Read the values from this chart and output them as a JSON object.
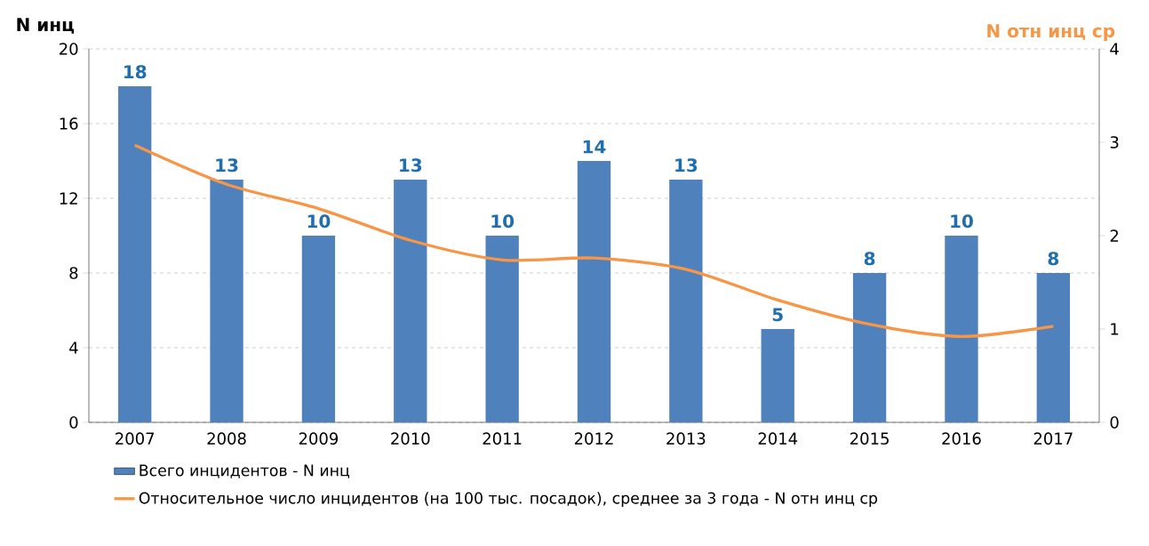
{
  "chart_data": {
    "type": "bar",
    "ylabel": "N инц",
    "y2label": "N отн инц ср",
    "categories": [
      "2007",
      "2008",
      "2009",
      "2010",
      "2011",
      "2012",
      "2013",
      "2014",
      "2015",
      "2016",
      "2017"
    ],
    "series": [
      {
        "name": "Всего инцидентов - N инц",
        "color": "#4f81bd",
        "values": [
          18,
          13,
          10,
          13,
          10,
          14,
          13,
          5,
          8,
          10,
          8
        ],
        "value_labels": [
          "18",
          "13",
          "10",
          "13",
          "10",
          "14",
          "13",
          "5",
          "8",
          "10",
          "8"
        ]
      },
      {
        "name": "Относительное число инцидентов (на 100 тыс. посадок), среднее за 3 года -  N отн инц ср",
        "type": "line",
        "axis": "y2",
        "color": "#f79646",
        "values": [
          2.97,
          2.55,
          2.29,
          1.95,
          1.74,
          1.76,
          1.64,
          1.31,
          1.05,
          0.92,
          1.03
        ]
      }
    ],
    "ylim": [
      0,
      20
    ],
    "yticks": [
      0,
      4,
      8,
      12,
      16,
      20
    ],
    "y2lim": [
      0,
      4
    ],
    "y2ticks": [
      0,
      1,
      2,
      3,
      4
    ],
    "grid": "y",
    "legend": "bottom",
    "marker": "none",
    "line_style": "solid"
  }
}
